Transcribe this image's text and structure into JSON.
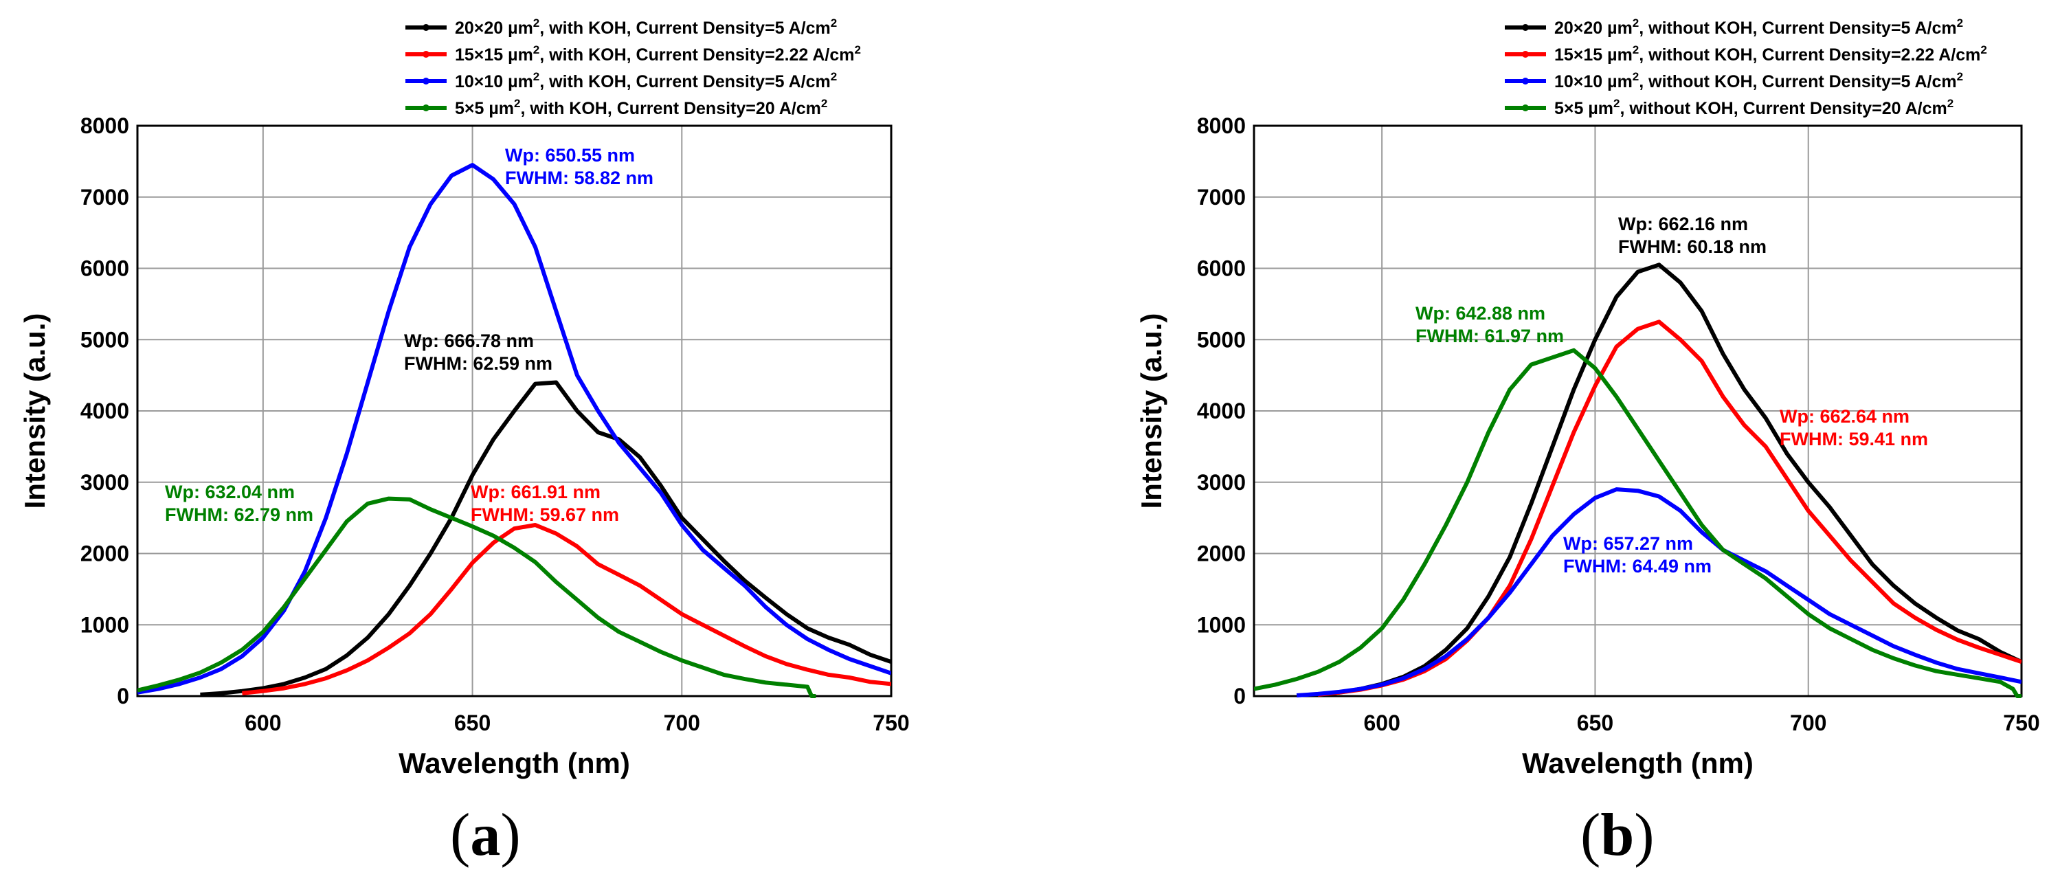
{
  "chart_data": [
    {
      "type": "line",
      "panel": "a",
      "xlabel": "Wavelength (nm)",
      "ylabel": "Intensity (a.u.)",
      "xlim": [
        570,
        750
      ],
      "ylim": [
        0,
        8000
      ],
      "xticks": [
        600,
        650,
        700,
        750
      ],
      "yticks": [
        0,
        1000,
        2000,
        3000,
        4000,
        5000,
        6000,
        7000,
        8000
      ],
      "grid": true,
      "legend_position": "top",
      "series": [
        {
          "name": "20×20 µm², with KOH, Current Density=5 A/cm²",
          "label_main": "20×20 µm",
          "label_sup1": "2",
          "label_rest": ", with KOH, Current Density=5 A/cm",
          "label_sup2": "2",
          "color": "#000000",
          "x": [
            585,
            590,
            595,
            600,
            605,
            610,
            615,
            620,
            625,
            630,
            635,
            640,
            645,
            650,
            655,
            660,
            665,
            670,
            675,
            680,
            685,
            690,
            695,
            700,
            705,
            710,
            715,
            720,
            725,
            730,
            735,
            740,
            745,
            750
          ],
          "y": [
            20,
            40,
            70,
            110,
            170,
            260,
            380,
            570,
            820,
            1150,
            1550,
            2000,
            2500,
            3100,
            3600,
            4000,
            4380,
            4400,
            4000,
            3700,
            3600,
            3350,
            2950,
            2500,
            2200,
            1900,
            1620,
            1380,
            1150,
            950,
            820,
            720,
            580,
            480
          ]
        },
        {
          "name": "15×15 µm², with KOH, Current Density=2.22 A/cm²",
          "label_main": "15×15 µm",
          "label_sup1": "2",
          "label_rest": ", with KOH, Current Density=2.22 A/cm",
          "label_sup2": "2",
          "color": "#ff0000",
          "x": [
            595,
            600,
            605,
            610,
            615,
            620,
            625,
            630,
            635,
            640,
            645,
            650,
            655,
            660,
            665,
            670,
            675,
            680,
            685,
            690,
            695,
            700,
            705,
            710,
            715,
            720,
            725,
            730,
            735,
            740,
            745,
            750
          ],
          "y": [
            40,
            70,
            110,
            170,
            250,
            360,
            500,
            680,
            880,
            1150,
            1500,
            1870,
            2150,
            2350,
            2400,
            2280,
            2100,
            1850,
            1700,
            1550,
            1350,
            1150,
            1000,
            850,
            700,
            560,
            450,
            370,
            300,
            260,
            200,
            170
          ]
        },
        {
          "name": "10×10 µm², with KOH, Current Density=5 A/cm²",
          "label_main": "10×10 µm",
          "label_sup1": "2",
          "label_rest": ", with KOH, Current Density=5 A/cm",
          "label_sup2": "2",
          "color": "#0000ff",
          "x": [
            570,
            575,
            580,
            585,
            590,
            595,
            600,
            605,
            610,
            615,
            620,
            625,
            630,
            635,
            640,
            645,
            650,
            655,
            660,
            665,
            670,
            675,
            680,
            685,
            690,
            695,
            700,
            705,
            710,
            715,
            720,
            725,
            730,
            735,
            740,
            745,
            750
          ],
          "y": [
            50,
            100,
            170,
            260,
            380,
            560,
            820,
            1200,
            1750,
            2500,
            3400,
            4400,
            5400,
            6300,
            6900,
            7300,
            7450,
            7250,
            6900,
            6300,
            5400,
            4500,
            4000,
            3550,
            3200,
            2850,
            2400,
            2050,
            1800,
            1550,
            1250,
            1000,
            800,
            650,
            520,
            420,
            320
          ]
        },
        {
          "name": "5×5 µm², with KOH, Current Density=20 A/cm²",
          "label_main": "5×5 µm",
          "label_sup1": "2",
          "label_rest": ", with KOH, Current Density=20 A/cm",
          "label_sup2": "2",
          "color": "#008000",
          "x": [
            570,
            575,
            580,
            585,
            590,
            595,
            600,
            605,
            610,
            615,
            620,
            625,
            630,
            635,
            640,
            645,
            650,
            655,
            660,
            665,
            670,
            675,
            680,
            685,
            690,
            695,
            700,
            705,
            710,
            715,
            720,
            725,
            730,
            731,
            732
          ],
          "y": [
            80,
            150,
            230,
            330,
            470,
            650,
            900,
            1250,
            1650,
            2050,
            2450,
            2700,
            2770,
            2760,
            2620,
            2500,
            2380,
            2250,
            2080,
            1880,
            1600,
            1350,
            1100,
            900,
            760,
            620,
            500,
            400,
            300,
            240,
            190,
            160,
            130,
            0,
            0
          ]
        }
      ],
      "annotations": [
        {
          "color": "#0000ff",
          "line1": "Wp: 650.55 nm",
          "line2": "FWHM: 58.82 nm"
        },
        {
          "color": "#000000",
          "line1": "Wp: 666.78 nm",
          "line2": "FWHM: 62.59 nm"
        },
        {
          "color": "#ff0000",
          "line1": "Wp: 661.91 nm",
          "line2": "FWHM: 59.67 nm"
        },
        {
          "color": "#008000",
          "line1": "Wp: 632.04 nm",
          "line2": "FWHM: 62.79 nm"
        }
      ]
    },
    {
      "type": "line",
      "panel": "b",
      "xlabel": "Wavelength (nm)",
      "ylabel": "Intensity (a.u.)",
      "xlim": [
        570,
        750
      ],
      "ylim": [
        0,
        8000
      ],
      "xticks": [
        600,
        650,
        700,
        750
      ],
      "yticks": [
        0,
        1000,
        2000,
        3000,
        4000,
        5000,
        6000,
        7000,
        8000
      ],
      "grid": true,
      "legend_position": "top",
      "series": [
        {
          "name": "20×20 µm², without KOH, Current Density=5 A/cm²",
          "label_main": "20×20 µm",
          "label_sup1": "2",
          "label_rest": ", without KOH, Current Density=5 A/cm",
          "label_sup2": "2",
          "color": "#000000",
          "x": [
            585,
            590,
            595,
            600,
            605,
            610,
            615,
            620,
            625,
            630,
            635,
            640,
            645,
            650,
            655,
            660,
            665,
            670,
            675,
            680,
            685,
            690,
            695,
            700,
            705,
            710,
            715,
            720,
            725,
            730,
            735,
            740,
            745,
            750
          ],
          "y": [
            20,
            50,
            100,
            170,
            270,
            420,
            650,
            950,
            1400,
            1950,
            2700,
            3500,
            4300,
            5000,
            5600,
            5950,
            6050,
            5800,
            5400,
            4800,
            4300,
            3900,
            3400,
            3000,
            2650,
            2250,
            1850,
            1550,
            1300,
            1100,
            920,
            800,
            620,
            480
          ]
        },
        {
          "name": "15×15 µm², without KOH, Current Density=2.22 A/cm²",
          "label_main": "15×15 µm",
          "label_sup1": "2",
          "label_rest": ", without KOH, Current Density=2.22 A/cm",
          "label_sup2": "2",
          "color": "#ff0000",
          "x": [
            585,
            590,
            595,
            600,
            605,
            610,
            615,
            620,
            625,
            630,
            635,
            640,
            645,
            650,
            655,
            660,
            665,
            670,
            675,
            680,
            685,
            690,
            695,
            700,
            705,
            710,
            715,
            720,
            725,
            730,
            735,
            740,
            745,
            750
          ],
          "y": [
            20,
            50,
            90,
            150,
            230,
            350,
            520,
            780,
            1100,
            1550,
            2200,
            2950,
            3700,
            4350,
            4900,
            5150,
            5250,
            5000,
            4700,
            4200,
            3800,
            3500,
            3050,
            2600,
            2250,
            1900,
            1600,
            1300,
            1100,
            930,
            790,
            680,
            580,
            480
          ]
        },
        {
          "name": "10×10 µm², without KOH, Current Density=5 A/cm²",
          "label_main": "10×10 µm",
          "label_sup1": "2",
          "label_rest": ", without KOH, Current Density=5 A/cm",
          "label_sup2": "2",
          "color": "#0000ff",
          "x": [
            580,
            585,
            590,
            595,
            600,
            605,
            610,
            615,
            620,
            625,
            630,
            635,
            640,
            645,
            650,
            655,
            660,
            665,
            670,
            675,
            680,
            685,
            690,
            695,
            700,
            705,
            710,
            715,
            720,
            725,
            730,
            735,
            740,
            745,
            750
          ],
          "y": [
            10,
            30,
            60,
            100,
            160,
            250,
            380,
            560,
            800,
            1100,
            1450,
            1850,
            2250,
            2550,
            2780,
            2900,
            2880,
            2800,
            2600,
            2300,
            2050,
            1900,
            1750,
            1550,
            1350,
            1150,
            1000,
            850,
            700,
            580,
            470,
            380,
            320,
            260,
            200
          ]
        },
        {
          "name": "5×5 µm², without KOH, Current Density=20 A/cm²",
          "label_main": "5×5 µm",
          "label_sup1": "2",
          "label_rest": ", without KOH, Current Density=20 A/cm",
          "label_sup2": "2",
          "color": "#008000",
          "x": [
            570,
            575,
            580,
            585,
            590,
            595,
            600,
            605,
            610,
            615,
            620,
            625,
            630,
            635,
            640,
            645,
            650,
            655,
            660,
            665,
            670,
            675,
            680,
            685,
            690,
            695,
            700,
            705,
            710,
            715,
            720,
            725,
            730,
            735,
            740,
            745,
            748,
            749,
            750
          ],
          "y": [
            100,
            160,
            240,
            340,
            480,
            680,
            950,
            1350,
            1850,
            2400,
            3000,
            3700,
            4300,
            4650,
            4750,
            4850,
            4600,
            4200,
            3750,
            3300,
            2850,
            2400,
            2050,
            1850,
            1650,
            1400,
            1150,
            950,
            800,
            650,
            530,
            430,
            350,
            300,
            250,
            200,
            100,
            0,
            0
          ]
        }
      ],
      "annotations": [
        {
          "color": "#000000",
          "line1": "Wp: 662.16 nm",
          "line2": "FWHM: 60.18 nm"
        },
        {
          "color": "#008000",
          "line1": "Wp: 642.88 nm",
          "line2": "FWHM: 61.97 nm"
        },
        {
          "color": "#ff0000",
          "line1": "Wp: 662.64 nm",
          "line2": "FWHM: 59.41 nm"
        },
        {
          "color": "#0000ff",
          "line1": "Wp: 657.27 nm",
          "line2": "FWHM: 64.49 nm"
        }
      ]
    }
  ],
  "panel_labels": {
    "a": "a",
    "b": "b"
  }
}
